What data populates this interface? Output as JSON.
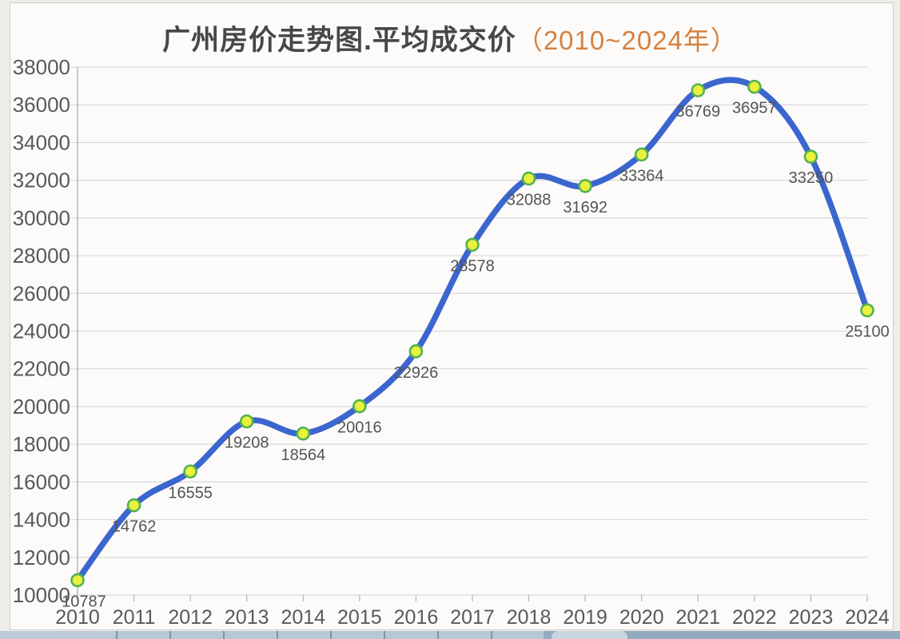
{
  "page": {
    "background_outer": "#efede9",
    "background_inner": "#fcfbf9"
  },
  "title": {
    "main": "广州房价走势图.平均成交价",
    "range": "（2010~2024年）",
    "main_color": "#474747",
    "range_color": "#d5813f"
  },
  "chart_data": {
    "type": "line",
    "title": "广州房价走势图.平均成交价（2010~2024年）",
    "categories": [
      "2010",
      "2011",
      "2012",
      "2013",
      "2014",
      "2015",
      "2016",
      "2017",
      "2018",
      "2019",
      "2020",
      "2021",
      "2022",
      "2023",
      "2024"
    ],
    "series": [
      {
        "name": "平均成交价",
        "values": [
          10787,
          14762,
          16555,
          19208,
          18564,
          20016,
          22926,
          28578,
          32088,
          31692,
          33364,
          36769,
          36957,
          33250,
          25100
        ]
      }
    ],
    "data_labels": [
      "10787",
      "14762",
      "16555",
      "19208",
      "18564",
      "20016",
      "22926",
      "28578",
      "32088",
      "31692",
      "33364",
      "36769",
      "36957",
      "33250",
      "25100"
    ],
    "xlabel": "",
    "ylabel": "",
    "ylim": [
      10000,
      38000
    ],
    "y_ticks": [
      10000,
      12000,
      14000,
      16000,
      18000,
      20000,
      22000,
      24000,
      26000,
      28000,
      30000,
      32000,
      34000,
      36000,
      38000
    ],
    "grid": "horizontal",
    "legend": "none",
    "smooth": true,
    "line_color": "#3b66cf",
    "marker_fill": "#e9f13c",
    "marker_stroke": "#52b251",
    "gridline_color": "#d9d9d9",
    "axis_line_color": "#b3b3b3",
    "tick_color": "#b3b3b3",
    "axis_label_color": "#595959",
    "data_label_color": "#545454"
  },
  "bottom_strip": {
    "description": "cut-off edge of spreadsheet window below chart"
  }
}
